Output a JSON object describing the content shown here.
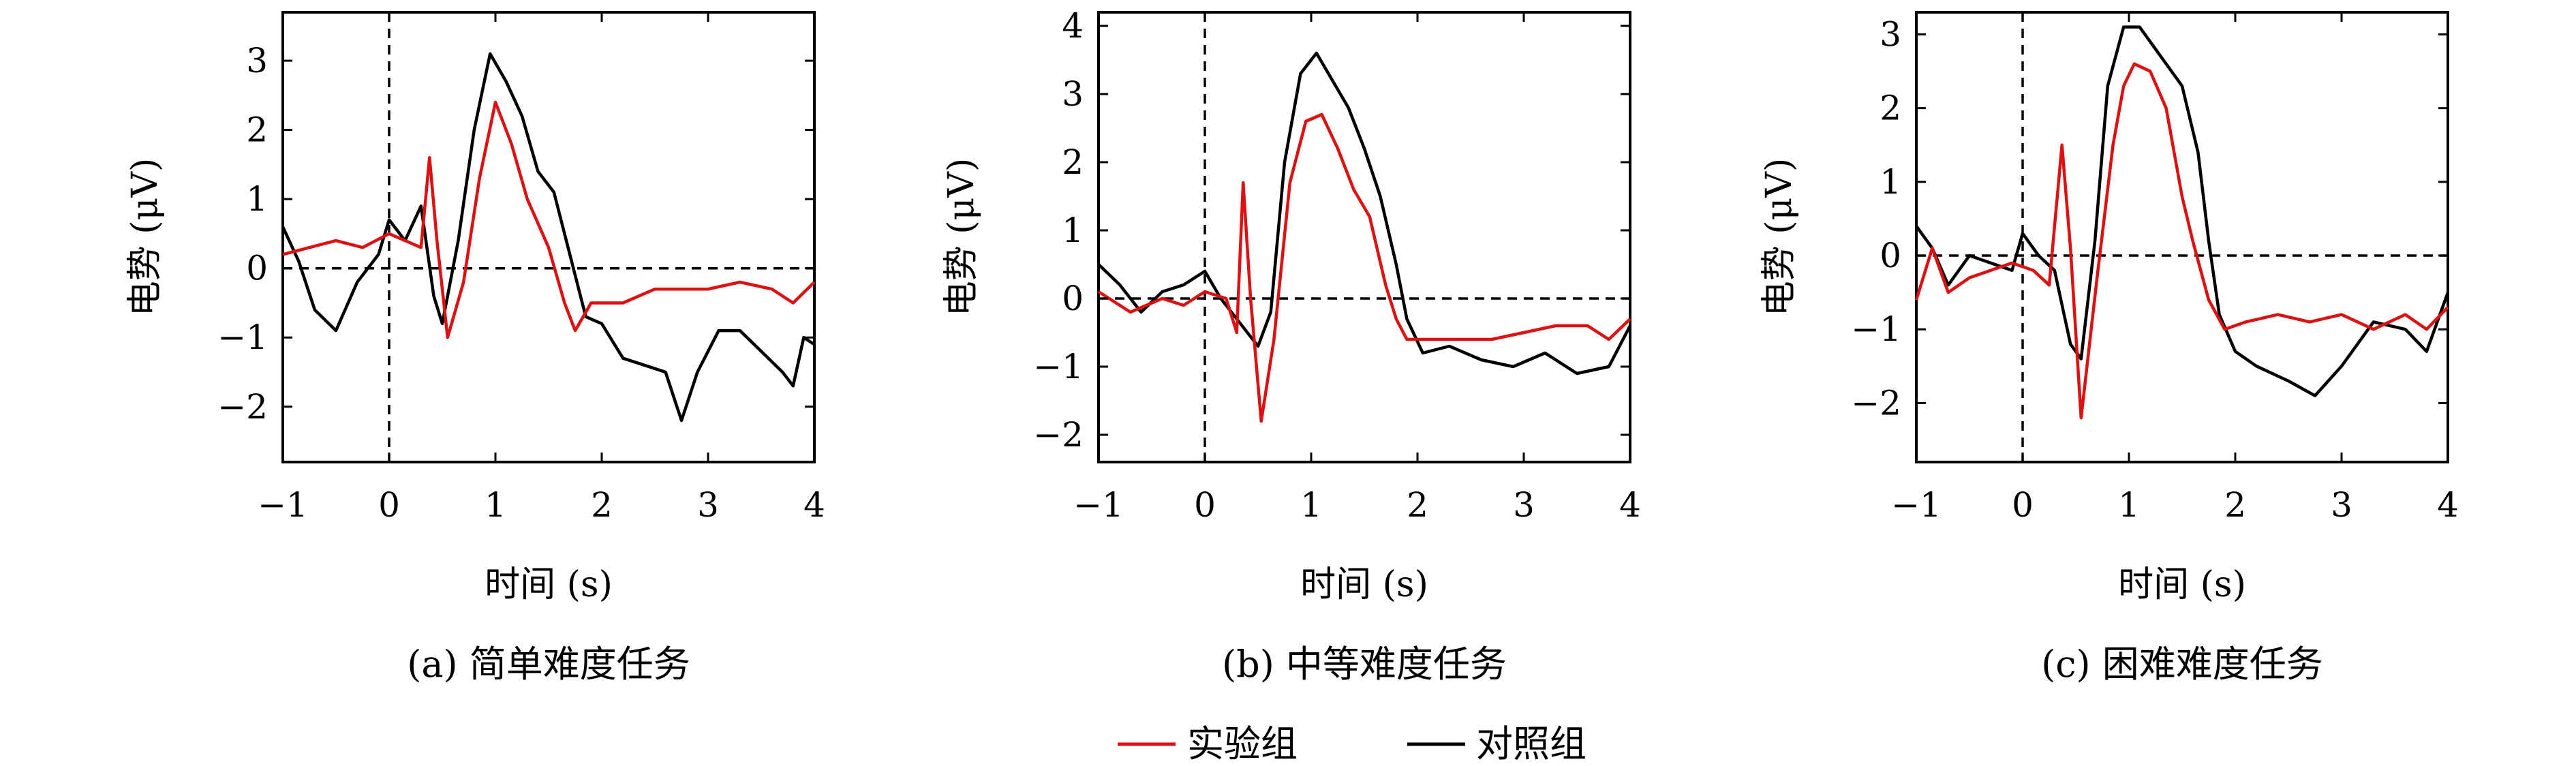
{
  "legend": {
    "items": [
      {
        "label": "实验组",
        "color": "#dd1111"
      },
      {
        "label": "对照组",
        "color": "#000000"
      }
    ]
  },
  "chart_data": [
    {
      "type": "line",
      "caption": "(a) 简单难度任务",
      "xlabel": "时间 (s)",
      "ylabel": "电势 (μV)",
      "xlim": [
        -1,
        4
      ],
      "ylim": [
        -2.8,
        3.7
      ],
      "xticks": [
        -1,
        0,
        1,
        2,
        3,
        4
      ],
      "xtick_labels": [
        "−1",
        "0",
        "1",
        "2",
        "3",
        "4"
      ],
      "yticks": [
        -2,
        -1,
        0,
        1,
        2,
        3
      ],
      "ytick_labels": [
        "−2",
        "−1",
        "0",
        "1",
        "2",
        "3"
      ],
      "grid": false,
      "dashed_reference_lines": {
        "x": 0,
        "y": 0
      },
      "series": [
        {
          "name": "实验组",
          "color": "#dd1111",
          "points": [
            [
              -1,
              0.2
            ],
            [
              -0.75,
              0.3
            ],
            [
              -0.5,
              0.4
            ],
            [
              -0.25,
              0.3
            ],
            [
              0,
              0.5
            ],
            [
              0.15,
              0.4
            ],
            [
              0.3,
              0.3
            ],
            [
              0.38,
              1.6
            ],
            [
              0.45,
              0.4
            ],
            [
              0.55,
              -1.0
            ],
            [
              0.7,
              -0.2
            ],
            [
              0.85,
              1.3
            ],
            [
              1.0,
              2.4
            ],
            [
              1.15,
              1.8
            ],
            [
              1.3,
              1.0
            ],
            [
              1.5,
              0.3
            ],
            [
              1.65,
              -0.5
            ],
            [
              1.75,
              -0.9
            ],
            [
              1.9,
              -0.5
            ],
            [
              2.2,
              -0.5
            ],
            [
              2.5,
              -0.3
            ],
            [
              3.0,
              -0.3
            ],
            [
              3.3,
              -0.2
            ],
            [
              3.6,
              -0.3
            ],
            [
              3.8,
              -0.5
            ],
            [
              4.0,
              -0.2
            ]
          ]
        },
        {
          "name": "对照组",
          "color": "#000000",
          "points": [
            [
              -1,
              0.6
            ],
            [
              -0.85,
              0.1
            ],
            [
              -0.7,
              -0.6
            ],
            [
              -0.5,
              -0.9
            ],
            [
              -0.3,
              -0.2
            ],
            [
              -0.1,
              0.2
            ],
            [
              0,
              0.7
            ],
            [
              0.15,
              0.4
            ],
            [
              0.3,
              0.9
            ],
            [
              0.42,
              -0.4
            ],
            [
              0.5,
              -0.8
            ],
            [
              0.65,
              0.4
            ],
            [
              0.8,
              2.0
            ],
            [
              0.95,
              3.1
            ],
            [
              1.1,
              2.7
            ],
            [
              1.25,
              2.2
            ],
            [
              1.4,
              1.4
            ],
            [
              1.55,
              1.1
            ],
            [
              1.7,
              0.2
            ],
            [
              1.85,
              -0.7
            ],
            [
              2.0,
              -0.8
            ],
            [
              2.2,
              -1.3
            ],
            [
              2.4,
              -1.4
            ],
            [
              2.6,
              -1.5
            ],
            [
              2.75,
              -2.2
            ],
            [
              2.9,
              -1.5
            ],
            [
              3.1,
              -0.9
            ],
            [
              3.3,
              -0.9
            ],
            [
              3.5,
              -1.2
            ],
            [
              3.7,
              -1.5
            ],
            [
              3.8,
              -1.7
            ],
            [
              3.9,
              -1.0
            ],
            [
              4.0,
              -1.1
            ]
          ]
        }
      ]
    },
    {
      "type": "line",
      "caption": "(b) 中等难度任务",
      "xlabel": "时间 (s)",
      "ylabel": "电势 (μV)",
      "xlim": [
        -1,
        4
      ],
      "ylim": [
        -2.4,
        4.2
      ],
      "xticks": [
        -1,
        0,
        1,
        2,
        3,
        4
      ],
      "xtick_labels": [
        "−1",
        "0",
        "1",
        "2",
        "3",
        "4"
      ],
      "yticks": [
        -2,
        -1,
        0,
        1,
        2,
        3,
        4
      ],
      "ytick_labels": [
        "−2",
        "−1",
        "0",
        "1",
        "2",
        "3",
        "4"
      ],
      "grid": false,
      "dashed_reference_lines": {
        "x": 0,
        "y": 0
      },
      "series": [
        {
          "name": "实验组",
          "color": "#dd1111",
          "points": [
            [
              -1,
              0.1
            ],
            [
              -0.7,
              -0.2
            ],
            [
              -0.4,
              0.0
            ],
            [
              -0.2,
              -0.1
            ],
            [
              0,
              0.1
            ],
            [
              0.2,
              0.0
            ],
            [
              0.3,
              -0.5
            ],
            [
              0.36,
              1.7
            ],
            [
              0.43,
              0.0
            ],
            [
              0.53,
              -1.8
            ],
            [
              0.65,
              -0.6
            ],
            [
              0.8,
              1.7
            ],
            [
              0.95,
              2.6
            ],
            [
              1.1,
              2.7
            ],
            [
              1.25,
              2.2
            ],
            [
              1.4,
              1.6
            ],
            [
              1.55,
              1.2
            ],
            [
              1.7,
              0.2
            ],
            [
              1.8,
              -0.3
            ],
            [
              1.9,
              -0.6
            ],
            [
              2.1,
              -0.6
            ],
            [
              2.4,
              -0.6
            ],
            [
              2.7,
              -0.6
            ],
            [
              3.0,
              -0.5
            ],
            [
              3.3,
              -0.4
            ],
            [
              3.6,
              -0.4
            ],
            [
              3.8,
              -0.6
            ],
            [
              4.0,
              -0.3
            ]
          ]
        },
        {
          "name": "对照组",
          "color": "#000000",
          "points": [
            [
              -1,
              0.5
            ],
            [
              -0.8,
              0.2
            ],
            [
              -0.6,
              -0.2
            ],
            [
              -0.4,
              0.1
            ],
            [
              -0.2,
              0.2
            ],
            [
              0,
              0.4
            ],
            [
              0.15,
              0.0
            ],
            [
              0.3,
              -0.3
            ],
            [
              0.4,
              -0.5
            ],
            [
              0.5,
              -0.7
            ],
            [
              0.62,
              -0.2
            ],
            [
              0.75,
              2.0
            ],
            [
              0.9,
              3.3
            ],
            [
              1.05,
              3.6
            ],
            [
              1.2,
              3.2
            ],
            [
              1.35,
              2.8
            ],
            [
              1.5,
              2.2
            ],
            [
              1.65,
              1.5
            ],
            [
              1.8,
              0.5
            ],
            [
              1.9,
              -0.3
            ],
            [
              2.05,
              -0.8
            ],
            [
              2.3,
              -0.7
            ],
            [
              2.6,
              -0.9
            ],
            [
              2.9,
              -1.0
            ],
            [
              3.2,
              -0.8
            ],
            [
              3.5,
              -1.1
            ],
            [
              3.8,
              -1.0
            ],
            [
              4.0,
              -0.4
            ]
          ]
        }
      ]
    },
    {
      "type": "line",
      "caption": "(c) 困难难度任务",
      "xlabel": "时间 (s)",
      "ylabel": "电势 (μV)",
      "xlim": [
        -1,
        4
      ],
      "ylim": [
        -2.8,
        3.3
      ],
      "xticks": [
        -1,
        0,
        1,
        2,
        3,
        4
      ],
      "xtick_labels": [
        "−1",
        "0",
        "1",
        "2",
        "3",
        "4"
      ],
      "yticks": [
        -2,
        -1,
        0,
        1,
        2,
        3
      ],
      "ytick_labels": [
        "−2",
        "−1",
        "0",
        "1",
        "2",
        "3"
      ],
      "grid": false,
      "dashed_reference_lines": {
        "x": 0,
        "y": 0
      },
      "series": [
        {
          "name": "实验组",
          "color": "#dd1111",
          "points": [
            [
              -1,
              -0.6
            ],
            [
              -0.85,
              0.1
            ],
            [
              -0.7,
              -0.5
            ],
            [
              -0.5,
              -0.3
            ],
            [
              -0.3,
              -0.2
            ],
            [
              -0.1,
              -0.1
            ],
            [
              0.1,
              -0.2
            ],
            [
              0.25,
              -0.4
            ],
            [
              0.37,
              1.5
            ],
            [
              0.45,
              0.1
            ],
            [
              0.55,
              -2.2
            ],
            [
              0.7,
              -0.3
            ],
            [
              0.85,
              1.5
            ],
            [
              0.95,
              2.3
            ],
            [
              1.05,
              2.6
            ],
            [
              1.2,
              2.5
            ],
            [
              1.35,
              2.0
            ],
            [
              1.5,
              0.8
            ],
            [
              1.6,
              0.2
            ],
            [
              1.75,
              -0.6
            ],
            [
              1.9,
              -1.0
            ],
            [
              2.1,
              -0.9
            ],
            [
              2.4,
              -0.8
            ],
            [
              2.7,
              -0.9
            ],
            [
              3.0,
              -0.8
            ],
            [
              3.3,
              -1.0
            ],
            [
              3.6,
              -0.8
            ],
            [
              3.8,
              -1.0
            ],
            [
              4.0,
              -0.7
            ]
          ]
        },
        {
          "name": "对照组",
          "color": "#000000",
          "points": [
            [
              -1,
              0.4
            ],
            [
              -0.85,
              0.1
            ],
            [
              -0.7,
              -0.4
            ],
            [
              -0.5,
              0.0
            ],
            [
              -0.3,
              -0.1
            ],
            [
              -0.1,
              -0.2
            ],
            [
              0,
              0.3
            ],
            [
              0.15,
              0.0
            ],
            [
              0.3,
              -0.2
            ],
            [
              0.45,
              -1.2
            ],
            [
              0.55,
              -1.4
            ],
            [
              0.68,
              0.2
            ],
            [
              0.8,
              2.3
            ],
            [
              0.95,
              3.1
            ],
            [
              1.1,
              3.1
            ],
            [
              1.25,
              2.8
            ],
            [
              1.4,
              2.5
            ],
            [
              1.5,
              2.3
            ],
            [
              1.65,
              1.4
            ],
            [
              1.75,
              0.2
            ],
            [
              1.85,
              -0.8
            ],
            [
              2.0,
              -1.3
            ],
            [
              2.2,
              -1.5
            ],
            [
              2.5,
              -1.7
            ],
            [
              2.75,
              -1.9
            ],
            [
              3.0,
              -1.5
            ],
            [
              3.3,
              -0.9
            ],
            [
              3.6,
              -1.0
            ],
            [
              3.8,
              -1.3
            ],
            [
              4.0,
              -0.5
            ]
          ]
        }
      ]
    }
  ]
}
